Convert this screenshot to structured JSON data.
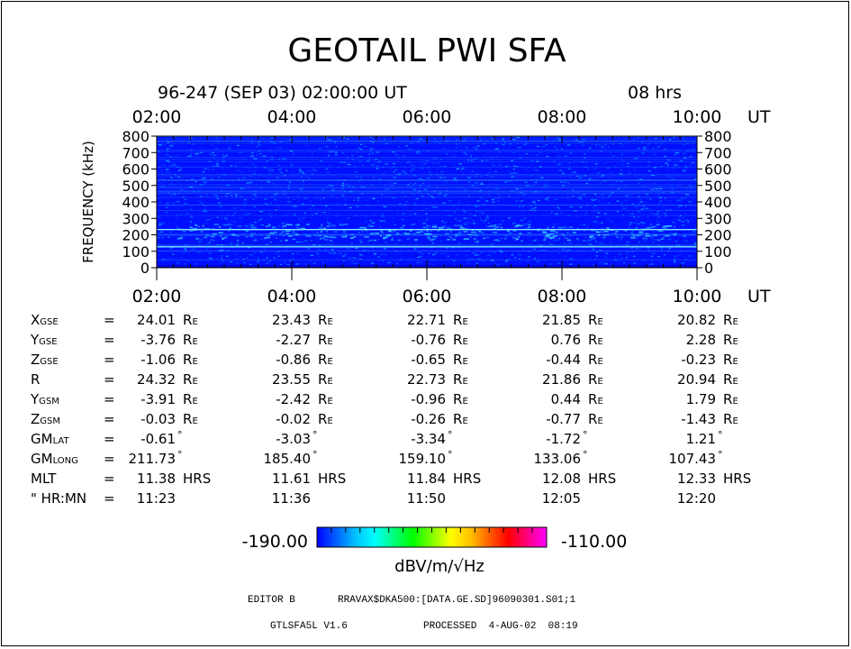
{
  "title": "GEOTAIL PWI SFA",
  "header": {
    "date_line": "96-247 (SEP 03) 02:00:00 UT",
    "duration": "08 hrs"
  },
  "chart_data": {
    "type": "heatmap",
    "x_unit": "UT",
    "x_ticks": [
      "02:00",
      "04:00",
      "06:00",
      "08:00",
      "10:00"
    ],
    "ylabel": "FREQUENCY (kHz)",
    "y_ticks": [
      "0",
      "100",
      "200",
      "300",
      "400",
      "500",
      "600",
      "700",
      "800"
    ],
    "ylim": [
      0,
      800
    ],
    "colorbar": {
      "min": "-190.00",
      "max": "-110.00",
      "unit": "dBV/m/√Hz",
      "colors": [
        "#0000ff",
        "#0060ff",
        "#00c0ff",
        "#00ffff",
        "#00ff80",
        "#00ff00",
        "#80ff00",
        "#ffff00",
        "#ffc000",
        "#ff6000",
        "#ff0000",
        "#ff0080",
        "#ff00ff"
      ]
    },
    "background_color": "#0010ff",
    "emission_color": "#40e0ff",
    "bright_lines_khz": [
      127,
      232
    ]
  },
  "orbit": {
    "rows": [
      {
        "label_main": "X",
        "label_sub": "GSE",
        "sep": "=",
        "values": [
          "24.01",
          "23.43",
          "22.71",
          "21.85",
          "20.82"
        ],
        "unit": "RE"
      },
      {
        "label_main": "Y",
        "label_sub": "GSE",
        "sep": "=",
        "values": [
          "-3.76",
          "-2.27",
          "-0.76",
          "0.76",
          "2.28"
        ],
        "unit": "RE"
      },
      {
        "label_main": "Z",
        "label_sub": "GSE",
        "sep": "=",
        "values": [
          "-1.06",
          "-0.86",
          "-0.65",
          "-0.44",
          "-0.23"
        ],
        "unit": "RE"
      },
      {
        "label_main": "R",
        "label_sub": "",
        "sep": "=",
        "values": [
          "24.32",
          "23.55",
          "22.73",
          "21.86",
          "20.94"
        ],
        "unit": "RE"
      },
      {
        "label_main": "Y",
        "label_sub": "GSM",
        "sep": "=",
        "values": [
          "-3.91",
          "-2.42",
          "-0.96",
          "0.44",
          "1.79"
        ],
        "unit": "RE"
      },
      {
        "label_main": "Z",
        "label_sub": "GSM",
        "sep": "=",
        "values": [
          "-0.03",
          "-0.02",
          "-0.26",
          "-0.77",
          "-1.43"
        ],
        "unit": "RE"
      },
      {
        "label_main": "GM",
        "label_sub": "LAT",
        "sep": "=",
        "values": [
          "-0.61",
          "-3.03",
          "-3.34",
          "-1.72",
          "1.21"
        ],
        "unit": "°"
      },
      {
        "label_main": "GM",
        "label_sub": "LONG",
        "sep": "=",
        "values": [
          "211.73",
          "185.40",
          "159.10",
          "133.06",
          "107.43"
        ],
        "unit": "°"
      },
      {
        "label_main": "MLT",
        "label_sub": "",
        "sep": "=",
        "values": [
          "11.38",
          "11.61",
          "11.84",
          "12.08",
          "12.33"
        ],
        "unit": "HRS"
      },
      {
        "label_main": "\" HR:MN",
        "label_sub": "",
        "sep": "=",
        "values": [
          "11:23",
          "11:36",
          "11:50",
          "12:05",
          "12:20"
        ],
        "unit": ""
      }
    ]
  },
  "footer": {
    "editor": "EDITOR B",
    "path": "RRAVAX$DKA500:[DATA.GE.SD]96090301.S01;1",
    "version": "GTLSFA5L V1.6",
    "processed": "PROCESSED  4-AUG-02  08:19"
  }
}
